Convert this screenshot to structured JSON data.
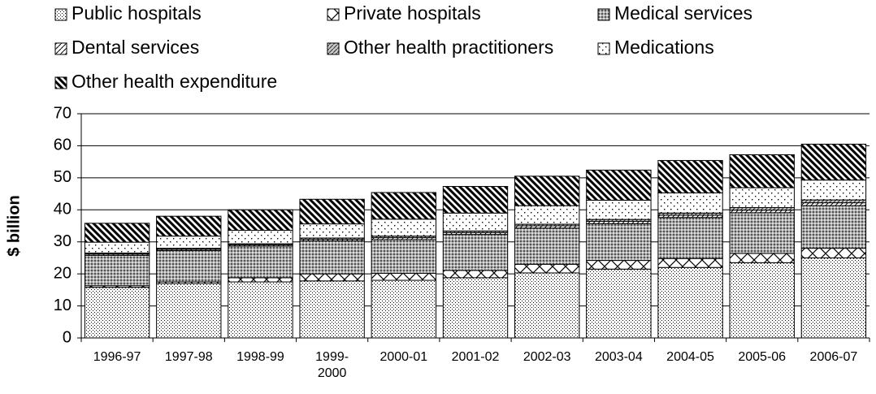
{
  "chart_data": {
    "type": "stacked_bar",
    "y_label": "$ billion",
    "categories": [
      "1996-97",
      "1997-98",
      "1998-99",
      "1999-2000",
      "2000-01",
      "2001-02",
      "2002-03",
      "2003-04",
      "2004-05",
      "2005-06",
      "2006-07"
    ],
    "series": [
      {
        "name": "Public hospitals",
        "color": "#000000",
        "values": [
          15.8,
          17.0,
          17.5,
          17.8,
          18.0,
          18.8,
          20.3,
          21.5,
          22.0,
          23.5,
          25.0
        ]
      },
      {
        "name": "Private hospitals",
        "color": "#000000",
        "values": [
          0.5,
          0.5,
          1.3,
          2.2,
          2.2,
          2.3,
          2.7,
          2.7,
          2.8,
          2.9,
          3.0
        ]
      },
      {
        "name": "Medical services",
        "color": "#000000",
        "values": [
          9.5,
          9.8,
          9.9,
          10.3,
          10.5,
          11.2,
          11.3,
          11.5,
          12.8,
          12.7,
          13.3
        ]
      },
      {
        "name": "Dental services",
        "color": "#000000",
        "values": [
          0.4,
          0.4,
          0.4,
          0.5,
          0.6,
          0.6,
          0.7,
          0.7,
          0.7,
          0.8,
          0.9
        ]
      },
      {
        "name": "Other health practitioners",
        "color": "#000000",
        "values": [
          0.3,
          0.3,
          0.3,
          0.4,
          0.5,
          0.5,
          0.5,
          0.6,
          0.7,
          0.8,
          0.9
        ]
      },
      {
        "name": "Medications",
        "color": "#000000",
        "values": [
          3.4,
          3.8,
          4.2,
          4.4,
          5.3,
          5.6,
          5.8,
          6.0,
          6.3,
          6.2,
          6.2
        ]
      },
      {
        "name": "Other health expenditure",
        "color": "#000000",
        "values": [
          5.9,
          6.2,
          6.4,
          7.7,
          8.3,
          8.3,
          9.2,
          9.4,
          10.1,
          10.3,
          11.2
        ]
      }
    ],
    "ylim": [
      0,
      70
    ],
    "yticks": [
      0,
      10,
      20,
      30,
      40,
      50,
      60,
      70
    ],
    "grid": true
  }
}
